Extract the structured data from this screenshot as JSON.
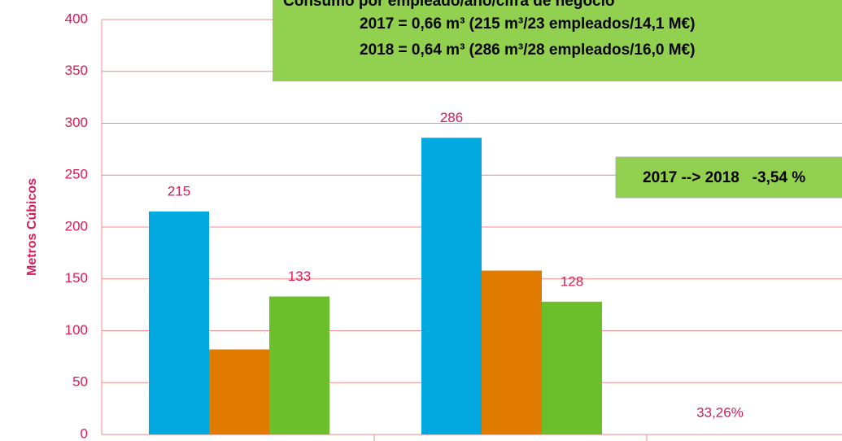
{
  "chart_data": {
    "type": "bar",
    "categories": [
      null,
      null,
      null
    ],
    "series": [
      {
        "color": "#00a8e0",
        "values": [
          215,
          286,
          null
        ],
        "show_labels": true
      },
      {
        "color": "#e07b00",
        "values": [
          82,
          158,
          null
        ],
        "show_labels": false
      },
      {
        "color": "#6abf2a",
        "values": [
          133,
          128,
          null
        ],
        "show_labels": true
      }
    ],
    "ylim": [
      0,
      400
    ],
    "yticks": [
      0,
      50,
      100,
      150,
      200,
      250,
      300,
      350,
      400
    ],
    "grid": true,
    "ylabel": "Metros Cúbicos",
    "annotations": [
      {
        "text": "33,26%"
      }
    ],
    "boxes": [
      {
        "lines": [
          "Consumo por empleado/año/cifra de negocio",
          "2017 = 0,66 m³ (215 m³/23 empleados/14,1 M€)",
          "2018 = 0,64 m³ (286 m³/28 empleados/16,0 M€)"
        ]
      },
      {
        "lines": [
          "2017 --> 2018   -3,54 %"
        ]
      }
    ]
  }
}
